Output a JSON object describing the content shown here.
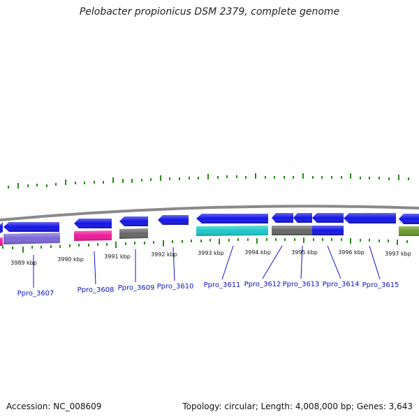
{
  "title": "Pelobacter propionicus DSM 2379, complete genome",
  "footer": {
    "accession": "Accession: NC_008609",
    "summary": "Topology: circular; Length: 4,008,000 bp; Genes: 3,643"
  },
  "colors": {
    "backbone": "#8a8a8a",
    "gc_ticks": "#2a8a1a",
    "label": "#1010c8",
    "blue": "#1414e6",
    "purple": "#7b68d8",
    "magenta": "#ee1a9a",
    "gray": "#666666",
    "cyan": "#1ac8c8",
    "olive": "#6a9a2a"
  },
  "scale_labels": [
    "3989 kbp",
    "3990 kbp",
    "3991 kbp",
    "3992 kbp",
    "3993 kbp",
    "3994 kbp",
    "3995 kbp",
    "3996 kbp",
    "3997 kbp"
  ],
  "gene_labels": [
    "Ppro_3607",
    "Ppro_3608",
    "Ppro_3609",
    "Ppro_3610",
    "Ppro_3611",
    "Ppro_3612",
    "Ppro_3613",
    "Ppro_3614",
    "Ppro_3615"
  ]
}
